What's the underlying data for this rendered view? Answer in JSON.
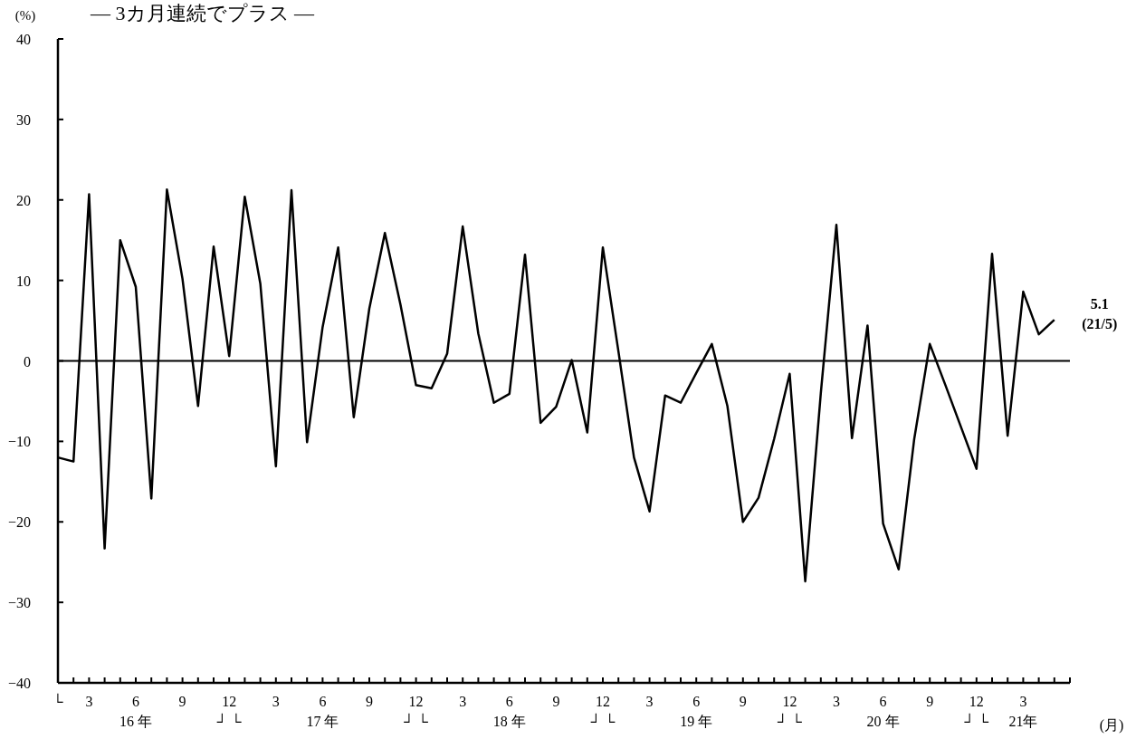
{
  "chart_data": {
    "type": "line",
    "subtitle": "— 3カ月連続でプラス —",
    "ylabel": "(%)",
    "xlabel": "(月)",
    "x": [
      "2016-01",
      "2016-02",
      "2016-03",
      "2016-04",
      "2016-05",
      "2016-06",
      "2016-07",
      "2016-08",
      "2016-09",
      "2016-10",
      "2016-11",
      "2016-12",
      "2017-01",
      "2017-02",
      "2017-03",
      "2017-04",
      "2017-05",
      "2017-06",
      "2017-07",
      "2017-08",
      "2017-09",
      "2017-10",
      "2017-11",
      "2017-12",
      "2018-01",
      "2018-02",
      "2018-03",
      "2018-04",
      "2018-05",
      "2018-06",
      "2018-07",
      "2018-08",
      "2018-09",
      "2018-10",
      "2018-11",
      "2018-12",
      "2019-01",
      "2019-02",
      "2019-03",
      "2019-04",
      "2019-05",
      "2019-06",
      "2019-07",
      "2019-08",
      "2019-09",
      "2019-10",
      "2019-11",
      "2019-12",
      "2020-01",
      "2020-02",
      "2020-03",
      "2020-04",
      "2020-05",
      "2020-06",
      "2020-07",
      "2020-08",
      "2020-09",
      "2020-10",
      "2020-11",
      "2020-12",
      "2021-01",
      "2021-02",
      "2021-03",
      "2021-04",
      "2021-05"
    ],
    "series": [
      {
        "color": "#000000",
        "values": [
          -12.0,
          -12.5,
          20.7,
          -23.3,
          15.0,
          9.2,
          -17.1,
          21.3,
          10.2,
          -5.6,
          14.2,
          0.6,
          20.4,
          9.6,
          -13.1,
          21.2,
          -10.1,
          4.2,
          14.1,
          -7.0,
          6.5,
          15.9,
          7.0,
          -3.0,
          -3.4,
          0.9,
          16.7,
          3.4,
          -5.2,
          -4.1,
          13.2,
          -7.7,
          -5.7,
          0.1,
          -8.9,
          14.1,
          1.2,
          -12.0,
          -18.7,
          -4.3,
          -5.2,
          -1.5,
          2.1,
          -5.6,
          -20.0,
          -17.0,
          -9.7,
          -1.6,
          -27.4,
          -4.0,
          16.9,
          -9.6,
          4.4,
          -20.2,
          -25.9,
          -9.7,
          2.1,
          -3.0,
          -8.2,
          -13.4,
          13.3,
          -9.3,
          8.6,
          3.3,
          5.1
        ]
      }
    ],
    "xlim": [
      "2016-01",
      "2021-06"
    ],
    "ylim": [
      -40,
      40
    ],
    "yticks": [
      -40,
      -30,
      -20,
      -10,
      0,
      10,
      20,
      30,
      40
    ],
    "xticks": [
      {
        "value": "2016-01",
        "label": "└"
      },
      {
        "value": "2016-02",
        "label": null
      },
      {
        "value": "2016-03",
        "label": "3"
      },
      {
        "value": "2016-04",
        "label": null
      },
      {
        "value": "2016-05",
        "label": null
      },
      {
        "value": "2016-06",
        "label": "6\n16 年"
      },
      {
        "value": "2016-07",
        "label": null
      },
      {
        "value": "2016-08",
        "label": null
      },
      {
        "value": "2016-09",
        "label": "9"
      },
      {
        "value": "2016-10",
        "label": null
      },
      {
        "value": "2016-11",
        "label": null
      },
      {
        "value": "2016-12",
        "label": "12\n┘ └"
      },
      {
        "value": "2017-01",
        "label": null
      },
      {
        "value": "2017-02",
        "label": null
      },
      {
        "value": "2017-03",
        "label": "3"
      },
      {
        "value": "2017-04",
        "label": null
      },
      {
        "value": "2017-05",
        "label": null
      },
      {
        "value": "2017-06",
        "label": "6\n17 年"
      },
      {
        "value": "2017-07",
        "label": null
      },
      {
        "value": "2017-08",
        "label": null
      },
      {
        "value": "2017-09",
        "label": "9"
      },
      {
        "value": "2017-10",
        "label": null
      },
      {
        "value": "2017-11",
        "label": null
      },
      {
        "value": "2017-12",
        "label": "12\n┘ └"
      },
      {
        "value": "2018-01",
        "label": null
      },
      {
        "value": "2018-02",
        "label": null
      },
      {
        "value": "2018-03",
        "label": "3"
      },
      {
        "value": "2018-04",
        "label": null
      },
      {
        "value": "2018-05",
        "label": null
      },
      {
        "value": "2018-06",
        "label": "6\n18 年"
      },
      {
        "value": "2018-07",
        "label": null
      },
      {
        "value": "2018-08",
        "label": null
      },
      {
        "value": "2018-09",
        "label": "9"
      },
      {
        "value": "2018-10",
        "label": null
      },
      {
        "value": "2018-11",
        "label": null
      },
      {
        "value": "2018-12",
        "label": "12\n┘ └"
      },
      {
        "value": "2019-01",
        "label": null
      },
      {
        "value": "2019-02",
        "label": null
      },
      {
        "value": "2019-03",
        "label": "3"
      },
      {
        "value": "2019-04",
        "label": null
      },
      {
        "value": "2019-05",
        "label": null
      },
      {
        "value": "2019-06",
        "label": "6\n19 年"
      },
      {
        "value": "2019-07",
        "label": null
      },
      {
        "value": "2019-08",
        "label": null
      },
      {
        "value": "2019-09",
        "label": "9"
      },
      {
        "value": "2019-10",
        "label": null
      },
      {
        "value": "2019-11",
        "label": null
      },
      {
        "value": "2019-12",
        "label": "12\n┘ └"
      },
      {
        "value": "2020-01",
        "label": null
      },
      {
        "value": "2020-02",
        "label": null
      },
      {
        "value": "2020-03",
        "label": "3"
      },
      {
        "value": "2020-04",
        "label": null
      },
      {
        "value": "2020-05",
        "label": null
      },
      {
        "value": "2020-06",
        "label": "6\n20 年"
      },
      {
        "value": "2020-07",
        "label": null
      },
      {
        "value": "2020-08",
        "label": null
      },
      {
        "value": "2020-09",
        "label": "9"
      },
      {
        "value": "2020-10",
        "label": null
      },
      {
        "value": "2020-11",
        "label": null
      },
      {
        "value": "2020-12",
        "label": "12\n┘ └"
      },
      {
        "value": "2021-01",
        "label": null
      },
      {
        "value": "2021-02",
        "label": null
      },
      {
        "value": "2021-03",
        "label": "3\n21年"
      },
      {
        "value": "2021-04",
        "label": null
      },
      {
        "value": "2021-05",
        "label": null
      },
      {
        "value": "2021-06",
        "label": null
      }
    ],
    "ref_lines": [
      {
        "axis": "y",
        "value": 0
      }
    ],
    "annotations": [
      {
        "text": "5.1\n(21/5)",
        "x": "2021-05",
        "y": 5.1
      }
    ],
    "grid": false,
    "line_style": "solid",
    "marker": "none"
  }
}
